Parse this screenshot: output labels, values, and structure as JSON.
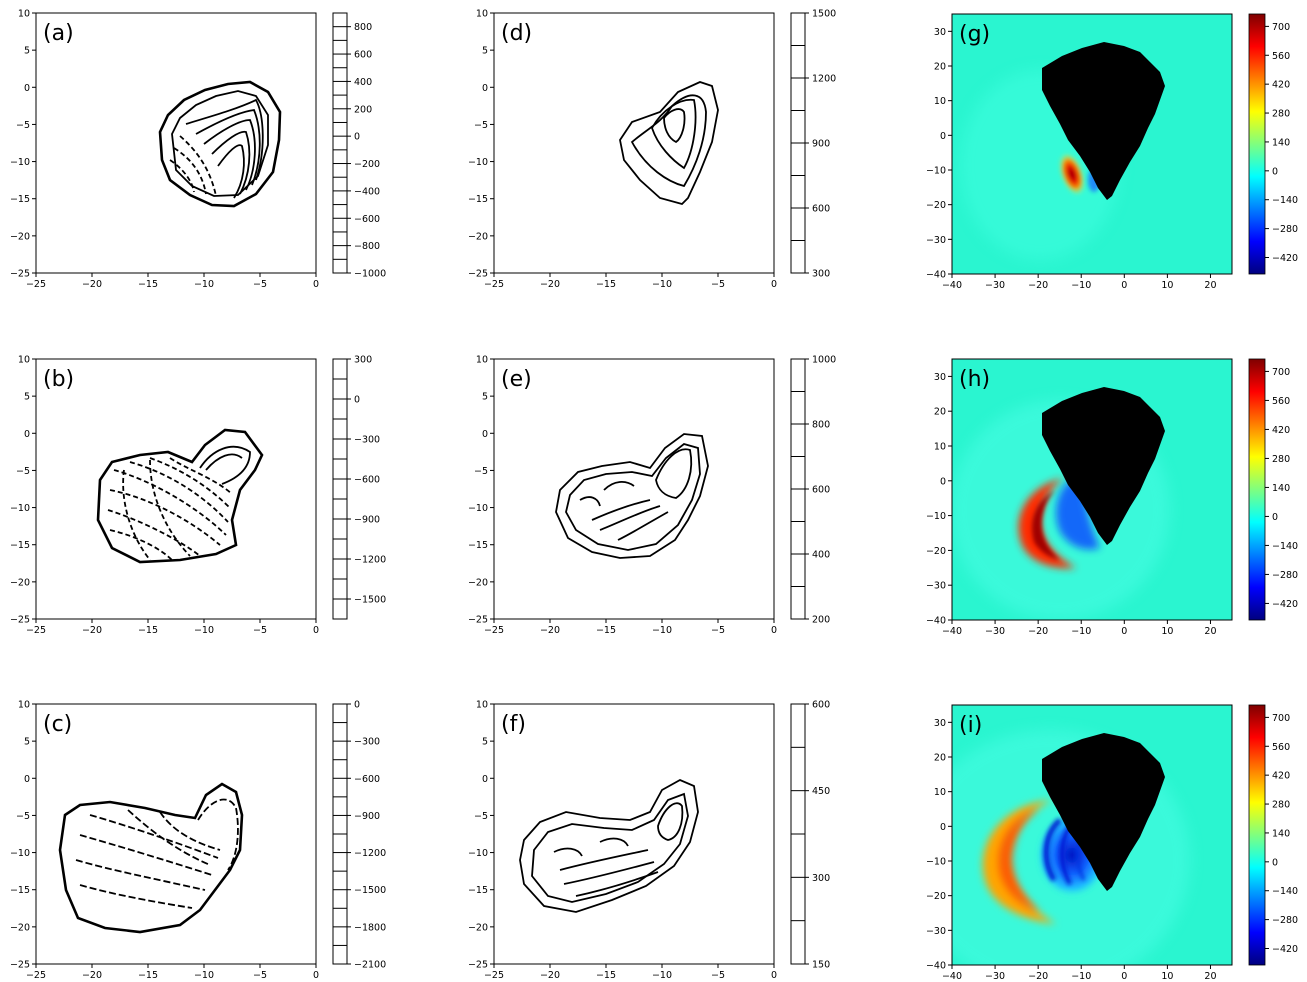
{
  "chart_data": [
    {
      "panel": "(a)",
      "type": "contour",
      "style": "line",
      "x_ticks": [
        "−25",
        "−20",
        "−15",
        "−10",
        "−5",
        "0"
      ],
      "xlim": [
        -25,
        0
      ],
      "y_ticks": [
        "−25",
        "−20",
        "−15",
        "−10",
        "−5",
        "0",
        "5",
        "10"
      ],
      "ylim": [
        -25,
        10
      ],
      "colorbar": {
        "type": "line-ticks",
        "range": [
          -1000,
          900
        ],
        "ticks": [
          "−1000",
          "−800",
          "−600",
          "−400",
          "−200",
          "0",
          "200",
          "400",
          "600",
          "800"
        ]
      }
    },
    {
      "panel": "(b)",
      "type": "contour",
      "style": "line",
      "x_ticks": [
        "−25",
        "−20",
        "−15",
        "−10",
        "−5",
        "0"
      ],
      "xlim": [
        -25,
        0
      ],
      "y_ticks": [
        "−25",
        "−20",
        "−15",
        "−10",
        "−5",
        "0",
        "5",
        "10"
      ],
      "ylim": [
        -25,
        10
      ],
      "colorbar": {
        "type": "line-ticks",
        "range": [
          -1650,
          300
        ],
        "ticks": [
          "−1500",
          "−1200",
          "−900",
          "−600",
          "−300",
          "0",
          "300"
        ]
      }
    },
    {
      "panel": "(c)",
      "type": "contour",
      "style": "line",
      "x_ticks": [
        "−25",
        "−20",
        "−15",
        "−10",
        "−5",
        "0"
      ],
      "xlim": [
        -25,
        0
      ],
      "y_ticks": [
        "−25",
        "−20",
        "−15",
        "−10",
        "−5",
        "0",
        "5",
        "10"
      ],
      "ylim": [
        -25,
        10
      ],
      "colorbar": {
        "type": "line-ticks",
        "range": [
          -2100,
          0
        ],
        "ticks": [
          "−2100",
          "−1800",
          "−1500",
          "−1200",
          "−900",
          "−600",
          "−300",
          "0"
        ]
      }
    },
    {
      "panel": "(d)",
      "type": "contour",
      "style": "line",
      "x_ticks": [
        "−25",
        "−20",
        "−15",
        "−10",
        "−5",
        "0"
      ],
      "xlim": [
        -25,
        0
      ],
      "y_ticks": [
        "−25",
        "−20",
        "−15",
        "−10",
        "−5",
        "0",
        "5",
        "10"
      ],
      "ylim": [
        -25,
        10
      ],
      "colorbar": {
        "type": "line-ticks",
        "range": [
          300,
          1500
        ],
        "ticks": [
          "300",
          "600",
          "900",
          "1200",
          "1500"
        ]
      }
    },
    {
      "panel": "(e)",
      "type": "contour",
      "style": "line",
      "x_ticks": [
        "−25",
        "−20",
        "−15",
        "−10",
        "−5",
        "0"
      ],
      "xlim": [
        -25,
        0
      ],
      "y_ticks": [
        "−25",
        "−20",
        "−15",
        "−10",
        "−5",
        "0",
        "5",
        "10"
      ],
      "ylim": [
        -25,
        10
      ],
      "colorbar": {
        "type": "line-ticks",
        "range": [
          200,
          1000
        ],
        "ticks": [
          "200",
          "400",
          "600",
          "800",
          "1000"
        ]
      }
    },
    {
      "panel": "(f)",
      "type": "contour",
      "style": "line",
      "x_ticks": [
        "−25",
        "−20",
        "−15",
        "−10",
        "−5",
        "0"
      ],
      "xlim": [
        -25,
        0
      ],
      "y_ticks": [
        "−25",
        "−20",
        "−15",
        "−10",
        "−5",
        "0",
        "5",
        "10"
      ],
      "ylim": [
        -25,
        10
      ],
      "colorbar": {
        "type": "line-ticks",
        "range": [
          150,
          600
        ],
        "ticks": [
          "150",
          "300",
          "450",
          "600"
        ]
      }
    },
    {
      "panel": "(g)",
      "type": "heatmap",
      "colormap": "jet",
      "x_ticks": [
        "−40",
        "−30",
        "−20",
        "−10",
        "0",
        "10",
        "20"
      ],
      "xlim": [
        -40,
        25
      ],
      "y_ticks": [
        "−40",
        "−30",
        "−20",
        "−10",
        "0",
        "10",
        "20",
        "30"
      ],
      "ylim": [
        -40,
        35
      ],
      "colorbar": {
        "type": "color",
        "range": [
          -500,
          760
        ],
        "ticks": [
          "−420",
          "−280",
          "−140",
          "0",
          "140",
          "280",
          "420",
          "560",
          "700"
        ]
      }
    },
    {
      "panel": "(h)",
      "type": "heatmap",
      "colormap": "jet",
      "x_ticks": [
        "−40",
        "−30",
        "−20",
        "−10",
        "0",
        "10",
        "20"
      ],
      "xlim": [
        -40,
        25
      ],
      "y_ticks": [
        "−40",
        "−30",
        "−20",
        "−10",
        "0",
        "10",
        "20",
        "30"
      ],
      "ylim": [
        -40,
        35
      ],
      "colorbar": {
        "type": "color",
        "range": [
          -500,
          760
        ],
        "ticks": [
          "−420",
          "−280",
          "−140",
          "0",
          "140",
          "280",
          "420",
          "560",
          "700"
        ]
      }
    },
    {
      "panel": "(i)",
      "type": "heatmap",
      "colormap": "jet",
      "x_ticks": [
        "−40",
        "−30",
        "−20",
        "−10",
        "0",
        "10",
        "20"
      ],
      "xlim": [
        -40,
        25
      ],
      "y_ticks": [
        "−40",
        "−30",
        "−20",
        "−10",
        "0",
        "10",
        "20",
        "30"
      ],
      "ylim": [
        -40,
        35
      ],
      "colorbar": {
        "type": "color",
        "range": [
          -500,
          760
        ],
        "ticks": [
          "−420",
          "−280",
          "−140",
          "0",
          "140",
          "280",
          "420",
          "560",
          "700"
        ]
      }
    }
  ],
  "colors": {
    "background_sea": "#2af5d0",
    "island": "#000000",
    "line": "#000000"
  }
}
